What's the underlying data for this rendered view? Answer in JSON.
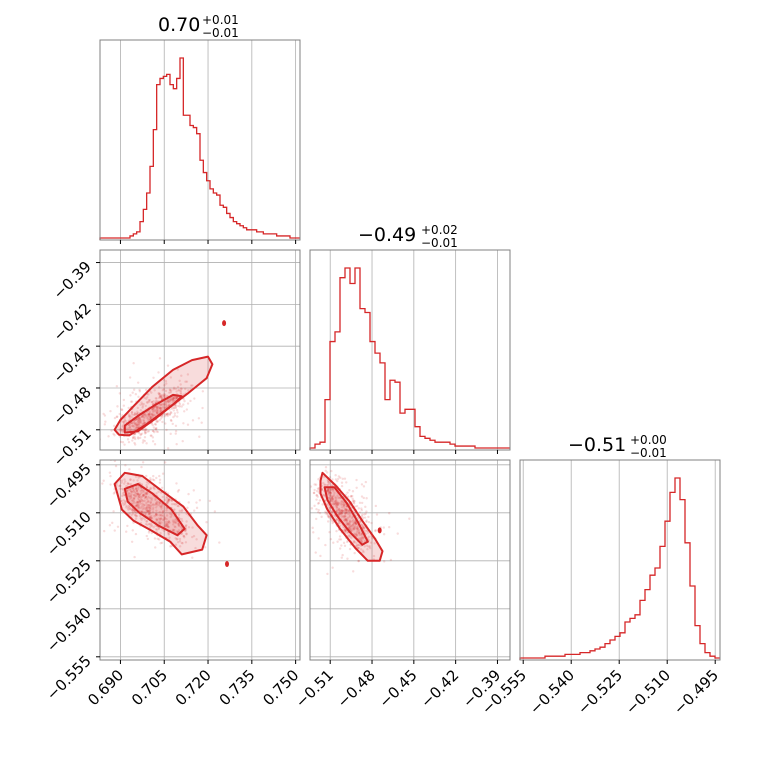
{
  "accent_color": "#d62728",
  "parameters": [
    {
      "id": "p1",
      "title_value": "0.70",
      "title_plus": "+0.01",
      "title_minus": "−0.01",
      "range": [
        0.683,
        0.7515
      ],
      "ticks": [
        {
          "v": 0.69,
          "label": "0.690"
        },
        {
          "v": 0.705,
          "label": "0.705"
        },
        {
          "v": 0.72,
          "label": "0.720"
        },
        {
          "v": 0.735,
          "label": "0.735"
        },
        {
          "v": 0.75,
          "label": "0.750"
        }
      ]
    },
    {
      "id": "p2",
      "title_value": "−0.49",
      "title_plus": "+0.02",
      "title_minus": "−0.01",
      "range": [
        -0.5245,
        -0.381
      ],
      "ticks": [
        {
          "v": -0.51,
          "label": "−0.51"
        },
        {
          "v": -0.48,
          "label": "−0.48"
        },
        {
          "v": -0.45,
          "label": "−0.45"
        },
        {
          "v": -0.42,
          "label": "−0.42"
        },
        {
          "v": -0.39,
          "label": "−0.39"
        }
      ]
    },
    {
      "id": "p3",
      "title_value": "−0.51",
      "title_plus": "+0.00",
      "title_minus": "−0.01",
      "range": [
        -0.556,
        -0.4935
      ],
      "ticks": [
        {
          "v": -0.555,
          "label": "−0.555"
        },
        {
          "v": -0.54,
          "label": "−0.540"
        },
        {
          "v": -0.525,
          "label": "−0.525"
        },
        {
          "v": -0.51,
          "label": "−0.510"
        },
        {
          "v": -0.495,
          "label": "−0.495"
        }
      ]
    }
  ],
  "chart_data": {
    "type": "corner",
    "grid": true,
    "histograms": [
      {
        "param": "p1",
        "bin_edges_range": [
          0.683,
          0.7515
        ],
        "counts": [
          0,
          0,
          0,
          0,
          0,
          0,
          0,
          0,
          0,
          1,
          2,
          3,
          8,
          14,
          22,
          35,
          53,
          75,
          78,
          79,
          80,
          75,
          73,
          78,
          88,
          60,
          60,
          55,
          54,
          51,
          38,
          32,
          28,
          24,
          22,
          21,
          16,
          15,
          12,
          10,
          8,
          7,
          6,
          5,
          4,
          4,
          4,
          3,
          3,
          2,
          2,
          2,
          2,
          1,
          1,
          1,
          1,
          0,
          0,
          0
        ]
      },
      {
        "param": "p2",
        "bin_edges_range": [
          -0.5245,
          -0.381
        ],
        "counts": [
          0,
          2,
          3,
          25,
          55,
          60,
          88,
          93,
          85,
          93,
          72,
          70,
          55,
          49,
          44,
          25,
          35,
          34,
          18,
          20,
          20,
          11,
          6,
          5,
          4,
          3,
          3,
          3,
          2,
          1,
          1,
          1,
          1,
          0,
          0,
          0,
          0,
          0,
          0,
          0
        ]
      },
      {
        "param": "p3",
        "bin_edges_range": [
          -0.556,
          -0.4935
        ],
        "counts": [
          0,
          0,
          0,
          0,
          0,
          1,
          1,
          1,
          1,
          2,
          2,
          2,
          3,
          3,
          4,
          5,
          6,
          8,
          10,
          12,
          14,
          20,
          22,
          24,
          32,
          38,
          46,
          50,
          62,
          76,
          92,
          100,
          88,
          64,
          40,
          18,
          8,
          3,
          1,
          0
        ]
      }
    ],
    "pairs": [
      {
        "x": "p1",
        "y": "p2",
        "correlation": 0.97,
        "contour_outer": [
          [
            0.6895,
            -0.5135
          ],
          [
            0.693,
            -0.514
          ],
          [
            0.699,
            -0.506
          ],
          [
            0.706,
            -0.495
          ],
          [
            0.713,
            -0.484
          ],
          [
            0.7195,
            -0.473
          ],
          [
            0.7215,
            -0.463
          ],
          [
            0.72,
            -0.4575
          ],
          [
            0.7145,
            -0.46
          ],
          [
            0.708,
            -0.467
          ],
          [
            0.701,
            -0.479
          ],
          [
            0.695,
            -0.492
          ],
          [
            0.69,
            -0.503
          ],
          [
            0.688,
            -0.51
          ]
        ],
        "contour_inner": [
          [
            0.6915,
            -0.512
          ],
          [
            0.696,
            -0.511
          ],
          [
            0.702,
            -0.502
          ],
          [
            0.708,
            -0.492
          ],
          [
            0.711,
            -0.486
          ],
          [
            0.708,
            -0.485
          ],
          [
            0.702,
            -0.492
          ],
          [
            0.696,
            -0.5
          ],
          [
            0.6915,
            -0.507
          ]
        ],
        "outlier": [
          0.7255,
          -0.4335
        ]
      },
      {
        "x": "p1",
        "y": "p3",
        "correlation": -0.7,
        "contour_outer": [
          [
            0.688,
            -0.501
          ],
          [
            0.6915,
            -0.4975
          ],
          [
            0.6975,
            -0.4985
          ],
          [
            0.704,
            -0.503
          ],
          [
            0.7115,
            -0.508
          ],
          [
            0.7165,
            -0.514
          ],
          [
            0.7195,
            -0.517
          ],
          [
            0.718,
            -0.5215
          ],
          [
            0.711,
            -0.523
          ],
          [
            0.707,
            -0.519
          ],
          [
            0.7005,
            -0.5155
          ],
          [
            0.6945,
            -0.5125
          ],
          [
            0.6905,
            -0.509
          ]
        ],
        "contour_inner": [
          [
            0.6915,
            -0.5025
          ],
          [
            0.696,
            -0.501
          ],
          [
            0.701,
            -0.504
          ],
          [
            0.7075,
            -0.509
          ],
          [
            0.712,
            -0.515
          ],
          [
            0.7095,
            -0.517
          ],
          [
            0.703,
            -0.514
          ],
          [
            0.6965,
            -0.51
          ],
          [
            0.6925,
            -0.5065
          ]
        ],
        "outlier": [
          0.7265,
          -0.526
        ]
      },
      {
        "x": "p2",
        "y": "p3",
        "correlation": -0.7,
        "contour_outer": [
          [
            -0.517,
            -0.5
          ],
          [
            -0.5155,
            -0.4975
          ],
          [
            -0.506,
            -0.5015
          ],
          [
            -0.496,
            -0.5065
          ],
          [
            -0.487,
            -0.5125
          ],
          [
            -0.478,
            -0.518
          ],
          [
            -0.4725,
            -0.522
          ],
          [
            -0.4745,
            -0.525
          ],
          [
            -0.483,
            -0.525
          ],
          [
            -0.492,
            -0.521
          ],
          [
            -0.503,
            -0.515
          ],
          [
            -0.512,
            -0.509
          ],
          [
            -0.517,
            -0.504
          ]
        ],
        "contour_inner": [
          [
            -0.514,
            -0.502
          ],
          [
            -0.507,
            -0.502
          ],
          [
            -0.498,
            -0.507
          ],
          [
            -0.49,
            -0.513
          ],
          [
            -0.483,
            -0.519
          ],
          [
            -0.487,
            -0.52
          ],
          [
            -0.496,
            -0.516
          ],
          [
            -0.505,
            -0.511
          ],
          [
            -0.512,
            -0.506
          ]
        ],
        "outlier": [
          -0.4745,
          -0.5155
        ]
      }
    ]
  }
}
